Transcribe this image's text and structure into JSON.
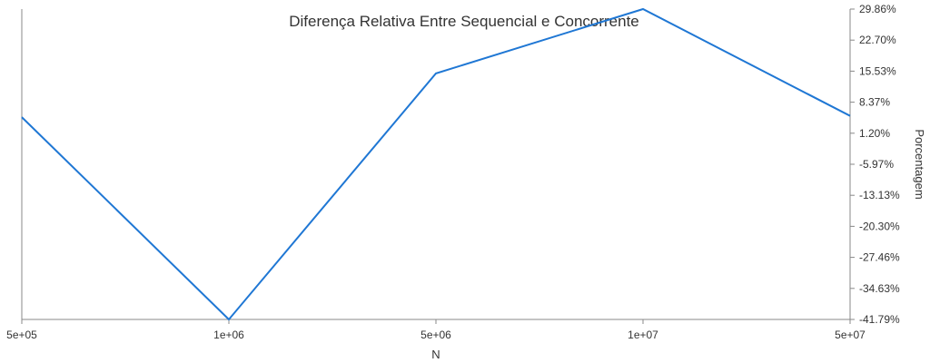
{
  "chart_data": {
    "type": "line",
    "title": "Diferença Relativa Entre Sequencial e Concorrente",
    "xlabel": "N",
    "ylabel": "Porcentagem",
    "categories": [
      "5e+05",
      "1e+06",
      "5e+06",
      "1e+07",
      "5e+07"
    ],
    "y_ticks": [
      "29.86%",
      "22.70%",
      "15.53%",
      "8.37%",
      "1.20%",
      "-5.97%",
      "-13.13%",
      "-20.30%",
      "-27.46%",
      "-34.63%",
      "-41.79%"
    ],
    "ylim": [
      -41.79,
      29.86
    ],
    "y_axis_side": "right",
    "grid": false,
    "series": [
      {
        "color": "#1f77d4",
        "values": [
          4.9,
          -41.79,
          15.0,
          29.86,
          5.2
        ]
      }
    ]
  }
}
